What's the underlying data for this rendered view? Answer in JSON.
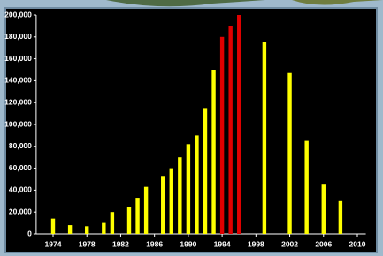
{
  "chart_data": {
    "type": "bar",
    "x": [
      1974,
      1976,
      1978,
      1980,
      1981,
      1983,
      1984,
      1985,
      1987,
      1988,
      1989,
      1990,
      1991,
      1992,
      1993,
      1994,
      1995,
      1996,
      1999,
      2002,
      2004,
      2006,
      2008
    ],
    "values": [
      14000,
      8000,
      7000,
      10000,
      20000,
      25000,
      33000,
      43000,
      53000,
      60000,
      70000,
      82000,
      90000,
      115000,
      150000,
      180000,
      190000,
      200000,
      175000,
      147000,
      85000,
      45000,
      30000
    ],
    "colors": [
      "#ffff00",
      "#ffff00",
      "#ffff00",
      "#ffff00",
      "#ffff00",
      "#ffff00",
      "#ffff00",
      "#ffff00",
      "#ffff00",
      "#ffff00",
      "#ffff00",
      "#ffff00",
      "#ffff00",
      "#ffff00",
      "#ffff00",
      "#e00000",
      "#e00000",
      "#e00000",
      "#ffff00",
      "#ffff00",
      "#ffff00",
      "#ffff00",
      "#ffff00"
    ],
    "xlim": [
      1972,
      2011
    ],
    "xticks": [
      1974,
      1978,
      1982,
      1986,
      1990,
      1994,
      1998,
      2002,
      2006,
      2010
    ],
    "ylim": [
      0,
      200000
    ],
    "yticks": [
      {
        "value": 0,
        "label": "0"
      },
      {
        "value": 20000,
        "label": "20,000"
      },
      {
        "value": 40000,
        "label": "40,000"
      },
      {
        "value": 60000,
        "label": "60,000"
      },
      {
        "value": 80000,
        "label": "80,000"
      },
      {
        "value": 100000,
        "label": "100,000"
      },
      {
        "value": 120000,
        "label": "120,000"
      },
      {
        "value": 140000,
        "label": "140,000"
      },
      {
        "value": 160000,
        "label": "160,000"
      },
      {
        "value": 180000,
        "label": "180,000"
      },
      {
        "value": 200000,
        "label": "200,000"
      }
    ]
  }
}
